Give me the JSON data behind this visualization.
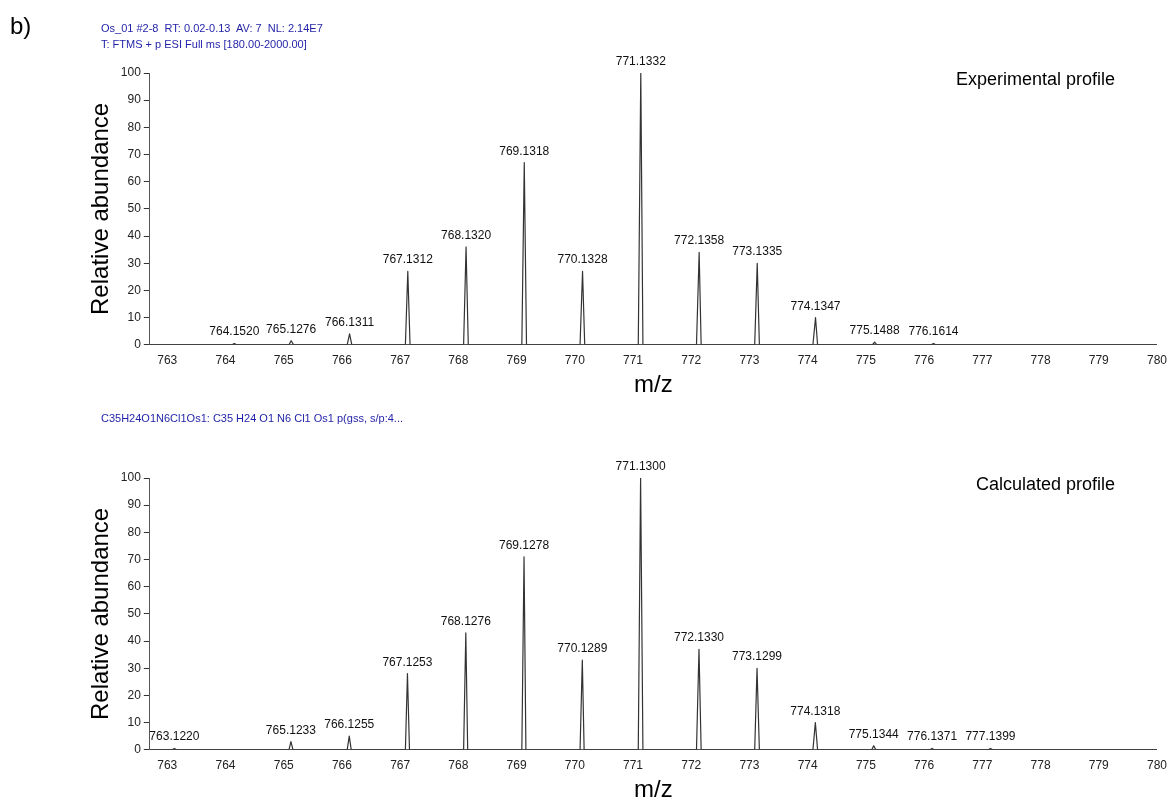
{
  "chart_data": [
    {
      "type": "line",
      "title": "b)",
      "subtitle": "Os_01 #2-8  RT: 0.02-0.13  AV: 7  NL: 2.14E7",
      "xlabel": "m/z",
      "ylabel": "Relative abundance",
      "annotations": [
        "T: FTMS + p ESI Full ms [180.00-2000.00]",
        "Experimental profile",
        {
          "text": "764.1520",
          "x": 764.152,
          "y": 0.5
        },
        {
          "text": "765.1276",
          "x": 765.1276,
          "y": 1.5
        },
        {
          "text": "766.1311",
          "x": 766.1311,
          "y": 4
        },
        {
          "text": "767.1312",
          "x": 767.1312,
          "y": 27
        },
        {
          "text": "768.1320",
          "x": 768.132,
          "y": 36
        },
        {
          "text": "769.1318",
          "x": 769.1318,
          "y": 67
        },
        {
          "text": "770.1328",
          "x": 770.1328,
          "y": 27
        },
        {
          "text": "771.1332",
          "x": 771.1332,
          "y": 100
        },
        {
          "text": "772.1358",
          "x": 772.1358,
          "y": 34
        },
        {
          "text": "773.1335",
          "x": 773.1335,
          "y": 30
        },
        {
          "text": "774.1347",
          "x": 774.1347,
          "y": 10
        },
        {
          "text": "775.1488",
          "x": 775.1488,
          "y": 1
        },
        {
          "text": "776.1614",
          "x": 776.1614,
          "y": 0.5
        }
      ],
      "series": [
        {
          "color": "#333333",
          "x": [
            762.7,
            764.11,
            764.152,
            764.19,
            765.09,
            765.1276,
            765.17,
            766.09,
            766.1311,
            766.17,
            767.09,
            767.1312,
            767.17,
            768.09,
            768.132,
            768.17,
            769.09,
            769.1318,
            769.17,
            770.09,
            770.1328,
            770.17,
            771.09,
            771.1332,
            771.17,
            772.09,
            772.1358,
            772.17,
            773.09,
            773.1335,
            773.17,
            774.09,
            774.1347,
            774.17,
            775.11,
            775.1488,
            775.19,
            776.12,
            776.1614,
            776.2,
            780
          ],
          "values": [
            0,
            0,
            0.5,
            0,
            0,
            1.5,
            0,
            0,
            4,
            0,
            0,
            27,
            0,
            0,
            36,
            0,
            0,
            67,
            0,
            0,
            27,
            0,
            0,
            100,
            0,
            0,
            34,
            0,
            0,
            30,
            0,
            0,
            10,
            0,
            0,
            1,
            0,
            0,
            0.5,
            0,
            0
          ]
        }
      ],
      "xlim": [
        762.7,
        780
      ],
      "xticks": [
        763,
        764,
        765,
        766,
        767,
        768,
        769,
        770,
        771,
        772,
        773,
        774,
        775,
        776,
        777,
        778,
        779,
        780
      ],
      "ylim": [
        0,
        100
      ],
      "yticks": [
        0,
        10,
        20,
        30,
        40,
        50,
        60,
        70,
        80,
        90,
        100
      ],
      "grid": false,
      "legend": false,
      "marker": "none",
      "line_style": "solid"
    },
    {
      "type": "line",
      "subtitle": "C35H24O1N6Cl1Os1: C35 H24 O1 N6 Cl1 Os1 p(gss, s/p:4...",
      "xlabel": "m/z",
      "ylabel": "Relative abundance",
      "annotations": [
        "Calculated profile",
        {
          "text": "763.1220",
          "x": 763.122,
          "y": 0.5
        },
        {
          "text": "765.1233",
          "x": 765.1233,
          "y": 3
        },
        {
          "text": "766.1255",
          "x": 766.1255,
          "y": 5
        },
        {
          "text": "767.1253",
          "x": 767.1253,
          "y": 28
        },
        {
          "text": "768.1276",
          "x": 768.1276,
          "y": 43
        },
        {
          "text": "769.1278",
          "x": 769.1278,
          "y": 71
        },
        {
          "text": "770.1289",
          "x": 770.1289,
          "y": 33
        },
        {
          "text": "771.1300",
          "x": 771.13,
          "y": 100
        },
        {
          "text": "772.1330",
          "x": 772.133,
          "y": 37
        },
        {
          "text": "773.1299",
          "x": 773.1299,
          "y": 30
        },
        {
          "text": "774.1318",
          "x": 774.1318,
          "y": 10
        },
        {
          "text": "775.1344",
          "x": 775.1344,
          "y": 1.5
        },
        {
          "text": "776.1371",
          "x": 776.1371,
          "y": 0.5
        },
        {
          "text": "777.1399",
          "x": 777.1399,
          "y": 0.5
        }
      ],
      "series": [
        {
          "color": "#333333",
          "x": [
            762.7,
            763.08,
            763.122,
            763.16,
            765.09,
            765.1233,
            765.16,
            766.09,
            766.1255,
            766.16,
            767.09,
            767.1253,
            767.16,
            768.09,
            768.1276,
            768.16,
            769.09,
            769.1278,
            769.16,
            770.09,
            770.1289,
            770.16,
            771.09,
            771.13,
            771.17,
            772.09,
            772.133,
            772.17,
            773.09,
            773.1299,
            773.17,
            774.09,
            774.1318,
            774.17,
            775.1,
            775.1344,
            775.17,
            776.1,
            776.1371,
            776.17,
            777.1,
            777.1399,
            777.18,
            780
          ],
          "values": [
            0,
            0,
            0.5,
            0,
            0,
            3,
            0,
            0,
            5,
            0,
            0,
            28,
            0,
            0,
            43,
            0,
            0,
            71,
            0,
            0,
            33,
            0,
            0,
            100,
            0,
            0,
            37,
            0,
            0,
            30,
            0,
            0,
            10,
            0,
            0,
            1.5,
            0,
            0,
            0.5,
            0,
            0,
            0.5,
            0,
            0
          ]
        }
      ],
      "xlim": [
        762.7,
        780
      ],
      "xticks": [
        763,
        764,
        765,
        766,
        767,
        768,
        769,
        770,
        771,
        772,
        773,
        774,
        775,
        776,
        777,
        778,
        779,
        780
      ],
      "ylim": [
        0,
        100
      ],
      "yticks": [
        0,
        10,
        20,
        30,
        40,
        50,
        60,
        70,
        80,
        90,
        100
      ],
      "grid": false,
      "legend": false,
      "marker": "none",
      "line_style": "solid"
    }
  ]
}
